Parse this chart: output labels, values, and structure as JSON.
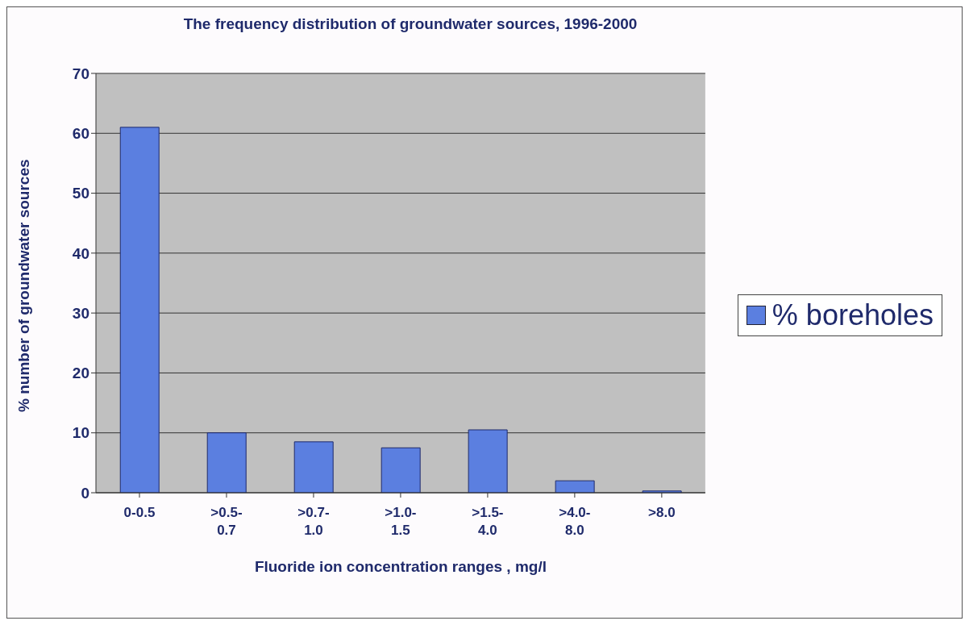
{
  "chart_data": {
    "type": "bar",
    "title": "The frequency distribution of groundwater sources, 1996-2000",
    "xlabel": "Fluoride ion concentration ranges , mg/l",
    "ylabel": "% number of groundwater sources",
    "categories": [
      "0-0.5",
      ">0.5-0.7",
      ">0.7-1.0",
      ">1.0-1.5",
      ">1.5-4.0",
      ">4.0-8.0",
      ">8.0"
    ],
    "series": [
      {
        "name": "% boreholes",
        "color": "#5b7fe0",
        "values": [
          61,
          10,
          8.5,
          7.5,
          10.5,
          2,
          0.3
        ]
      }
    ],
    "ylim": [
      0,
      70
    ],
    "yticks": [
      0,
      10,
      20,
      30,
      40,
      50,
      60,
      70
    ],
    "grid": "y",
    "legend": "right"
  }
}
